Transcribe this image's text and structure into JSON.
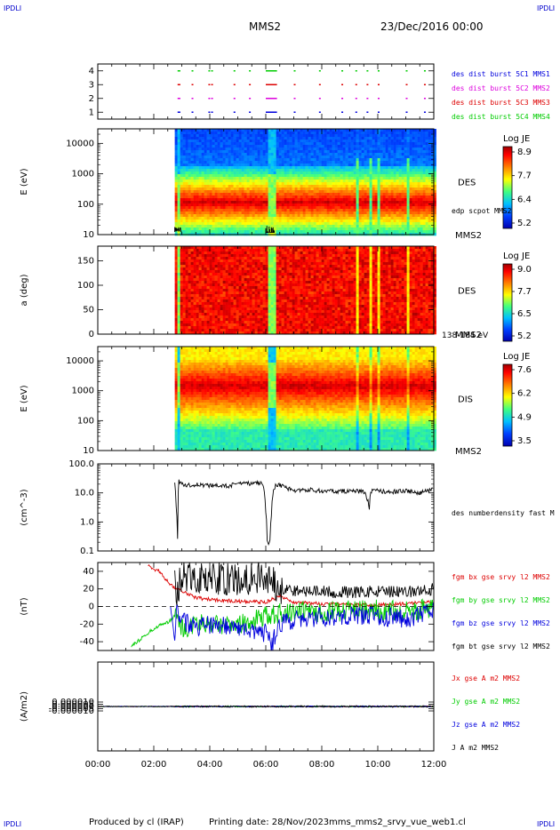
{
  "header": {
    "corner_tl": "IPDLI",
    "corner_tr": "IPDLI",
    "corner_bl": "IPDLI",
    "corner_br": "IPDLI",
    "title": "MMS2",
    "date": "23/Dec/2016 00:00"
  },
  "footer": {
    "produced_by": "Produced by cl (IRAP)",
    "printing_date": "Printing date: 28/Nov/2023",
    "script": "mms_mms2_srvy_vue_web1.cl"
  },
  "x_ticks": [
    "00:00",
    "02:00",
    "04:00",
    "06:00",
    "08:00",
    "10:00",
    "12:00"
  ],
  "colors": {
    "red": "#dd0000",
    "green": "#00cc00",
    "blue": "#0000dd",
    "black": "#000000",
    "magenta": "#dd00dd"
  },
  "chart_data": [
    {
      "type": "scatter",
      "name": "burst",
      "ylim": [
        0.5,
        4.5
      ],
      "yticks": [
        "1",
        "2",
        "3",
        "4"
      ],
      "xlim": [
        0,
        12
      ],
      "labels": [
        {
          "text": "des dist burst 5C1 MMS1",
          "color": "#0000dd"
        },
        {
          "text": "des dist burst 5C2 MMS2",
          "color": "#dd00dd"
        },
        {
          "text": "des dist burst 5C3 MMS3",
          "color": "#dd0000"
        },
        {
          "text": "des dist burst 5C4 MMS4",
          "color": "#00cc00"
        }
      ],
      "intervals_hours": [
        [
          2.85,
          2.95
        ],
        [
          3.35,
          3.4
        ],
        [
          3.95,
          4.0
        ],
        [
          4.05,
          4.1
        ],
        [
          4.85,
          4.9
        ],
        [
          5.4,
          5.45
        ],
        [
          6.0,
          6.4
        ],
        [
          7.0,
          7.05
        ],
        [
          7.9,
          7.95
        ],
        [
          8.7,
          8.75
        ],
        [
          9.2,
          9.25
        ],
        [
          9.6,
          9.65
        ],
        [
          10.0,
          10.05
        ],
        [
          11.0,
          11.05
        ],
        [
          11.65,
          11.7
        ]
      ]
    },
    {
      "type": "heatmap",
      "name": "des-energy",
      "ylabel": "E (eV)",
      "yscale": "log",
      "ylim": [
        10,
        30000
      ],
      "yticks": [
        "10",
        "100",
        "1000",
        "10000"
      ],
      "data_start_hour": 2.75,
      "instrument": "DES",
      "probe": "MMS2",
      "overlay_label": "edp scpot MMS2",
      "colorbar": {
        "label": "Log JE",
        "ticks": [
          "8.9",
          "7.7",
          "6.4",
          "5.2"
        ]
      }
    },
    {
      "type": "heatmap",
      "name": "des-pitch",
      "ylabel": "a (deg)",
      "ylim": [
        0,
        180
      ],
      "yticks": [
        "0",
        "50",
        "100",
        "150"
      ],
      "data_start_hour": 2.75,
      "instrument": "DES",
      "probe": "MMS2",
      "energy_range": "138-184 eV",
      "colorbar": {
        "label": "Log JE",
        "ticks": [
          "9.0",
          "7.7",
          "6.5",
          "5.2"
        ]
      }
    },
    {
      "type": "heatmap",
      "name": "dis-energy",
      "ylabel": "E (eV)",
      "yscale": "log",
      "ylim": [
        10,
        30000
      ],
      "yticks": [
        "10",
        "100",
        "1000",
        "10000"
      ],
      "data_start_hour": 2.75,
      "instrument": "DIS",
      "probe": "MMS2",
      "colorbar": {
        "label": "Log JE",
        "ticks": [
          "7.6",
          "6.2",
          "4.9",
          "3.5"
        ]
      }
    },
    {
      "type": "line",
      "name": "density",
      "ylabel": "(cm^-3)",
      "yscale": "log",
      "ylim": [
        0.1,
        100
      ],
      "yticks": [
        "0.1",
        "1.0",
        "10.0",
        "100.0"
      ],
      "series": [
        {
          "name": "des numberdensity fast M",
          "color": "#000000",
          "x": [
            2.75,
            2.8,
            2.85,
            2.9,
            3.0,
            3.2,
            3.5,
            4.0,
            4.5,
            5.0,
            5.5,
            5.9,
            6.0,
            6.05,
            6.1,
            6.15,
            6.2,
            6.3,
            6.4,
            6.5,
            7.0,
            7.5,
            8.0,
            8.5,
            9.0,
            9.5,
            9.7,
            9.75,
            9.8,
            10.0,
            10.5,
            11.0,
            11.5,
            12.0
          ],
          "y": [
            20,
            3,
            0.3,
            25,
            22,
            18,
            20,
            18,
            17,
            20,
            22,
            21,
            2,
            0.2,
            0.15,
            0.25,
            1.5,
            15,
            20,
            18,
            12,
            13,
            12,
            11,
            12,
            11,
            3,
            11,
            12,
            12,
            11,
            12,
            10,
            13
          ]
        }
      ]
    },
    {
      "type": "line",
      "name": "b-field",
      "ylabel": "(nT)",
      "ylim": [
        -50,
        50
      ],
      "yticks": [
        "-40",
        "-20",
        "0",
        "20",
        "40"
      ],
      "series": [
        {
          "name": "fgm bx gse srvy l2 MMS2",
          "color": "#dd0000",
          "x": [
            1.8,
            2.0,
            2.2,
            2.4,
            2.6,
            2.8,
            3.0,
            3.5,
            4.0,
            5.0,
            6.0,
            6.5,
            7.0,
            8.0,
            9.0,
            10.0,
            11.0,
            12.0
          ],
          "y": [
            48,
            42,
            40,
            32,
            25,
            20,
            18,
            10,
            8,
            6,
            5,
            12,
            5,
            3,
            2,
            2,
            3,
            6
          ]
        },
        {
          "name": "fgm by gse srvy l2 MMS2",
          "color": "#00cc00",
          "x": [
            1.2,
            1.5,
            1.8,
            2.0,
            2.3,
            2.5,
            2.8,
            3.0,
            3.5,
            4.0,
            5.0,
            6.0,
            6.5,
            7.0,
            8.0,
            9.0,
            10.0,
            11.0,
            12.0
          ],
          "y": [
            -45,
            -38,
            -30,
            -25,
            -20,
            -18,
            -10,
            -25,
            -20,
            -18,
            -22,
            -10,
            -8,
            -5,
            -6,
            -5,
            -4,
            -5,
            -3
          ]
        },
        {
          "name": "fgm bz gse srvy l2 MMS2",
          "color": "#0000dd",
          "x": [
            2.6,
            2.75,
            2.8,
            3.0,
            3.5,
            4.0,
            5.0,
            6.0,
            6.2,
            6.5,
            7.0,
            8.0,
            9.0,
            10.0,
            11.0,
            12.0
          ],
          "y": [
            0,
            -40,
            0,
            -15,
            -25,
            -20,
            -25,
            -30,
            -45,
            -20,
            -15,
            -12,
            -10,
            -10,
            -15,
            -5
          ]
        },
        {
          "name": "fgm bt gse srvy l2 MMS2",
          "color": "#000000",
          "x": [
            2.75,
            2.8,
            3.0,
            3.5,
            4.0,
            5.0,
            6.0,
            6.5,
            7.0,
            8.0,
            9.0,
            10.0,
            11.0,
            12.0
          ],
          "y": [
            35,
            10,
            35,
            30,
            32,
            30,
            35,
            22,
            18,
            17,
            16,
            17,
            16,
            20
          ]
        }
      ]
    },
    {
      "type": "line",
      "name": "current",
      "ylabel": "(A/m2)",
      "ylim": [
        -0.0001,
        0.0001
      ],
      "yticks": [
        "-0.000010",
        "-0.000005",
        "0.000000",
        "0.000005",
        "0.000010"
      ],
      "series": [
        {
          "name": "Jx gse A m2 MMS2",
          "color": "#dd0000",
          "x": [
            0,
            3,
            6,
            9,
            12
          ],
          "y": [
            0,
            0,
            0,
            0,
            0
          ]
        },
        {
          "name": "Jy gse A m2 MMS2",
          "color": "#00cc00",
          "x": [
            0,
            3,
            6,
            9,
            12
          ],
          "y": [
            0,
            0,
            0,
            0,
            0
          ]
        },
        {
          "name": "Jz gse A m2 MMS2",
          "color": "#0000dd",
          "x": [
            0,
            3,
            6,
            9,
            12
          ],
          "y": [
            0,
            0,
            0,
            0,
            0
          ]
        },
        {
          "name": "J A m2 MMS2",
          "color": "#000000",
          "x": [
            0,
            3,
            6,
            9,
            12
          ],
          "y": [
            0,
            0,
            0,
            0,
            0
          ]
        }
      ]
    }
  ]
}
